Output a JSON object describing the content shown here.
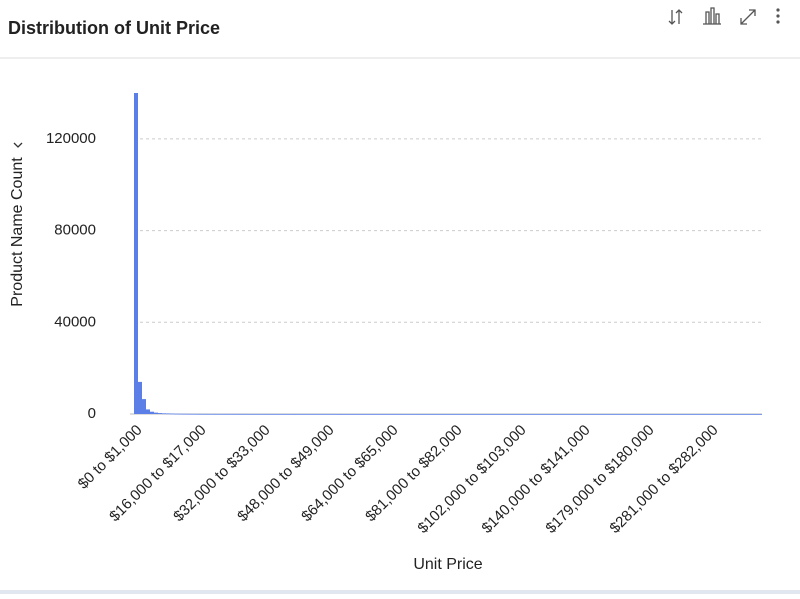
{
  "chart_data": {
    "type": "bar",
    "title": "Distribution of Unit Price",
    "x_label": "Unit Price",
    "y_label": "Product Name Count",
    "color": "#5b7fe6",
    "grid": true,
    "ylim": [
      0,
      140000
    ],
    "yticks": [
      0,
      40000,
      80000,
      120000
    ],
    "categories": [
      "$0 to $1,000",
      null,
      null,
      null,
      null,
      null,
      null,
      null,
      null,
      null,
      null,
      null,
      null,
      null,
      null,
      null,
      "$16,000 to $17,000",
      null,
      null,
      null,
      null,
      null,
      null,
      null,
      null,
      null,
      null,
      null,
      null,
      null,
      null,
      null,
      "$32,000 to $33,000",
      null,
      null,
      null,
      null,
      null,
      null,
      null,
      null,
      null,
      null,
      null,
      null,
      null,
      null,
      null,
      "$48,000 to $49,000",
      null,
      null,
      null,
      null,
      null,
      null,
      null,
      null,
      null,
      null,
      null,
      null,
      null,
      null,
      null,
      "$64,000 to $65,000",
      null,
      null,
      null,
      null,
      null,
      null,
      null,
      null,
      null,
      null,
      null,
      null,
      null,
      null,
      null,
      "$81,000 to $82,000",
      null,
      null,
      null,
      null,
      null,
      null,
      null,
      null,
      null,
      null,
      null,
      null,
      null,
      null,
      null,
      "$102,000 to $103,000",
      null,
      null,
      null,
      null,
      null,
      null,
      null,
      null,
      null,
      null,
      null,
      null,
      null,
      null,
      null,
      "$140,000 to $141,000",
      null,
      null,
      null,
      null,
      null,
      null,
      null,
      null,
      null,
      null,
      null,
      null,
      null,
      null,
      null,
      "$179,000 to $180,000",
      null,
      null,
      null,
      null,
      null,
      null,
      null,
      null,
      null,
      null,
      null,
      null,
      null,
      null,
      null,
      "$281,000 to $282,000",
      null,
      null,
      null,
      null,
      null,
      null,
      null,
      null,
      null,
      null,
      null,
      null
    ],
    "values": [
      140000,
      14000,
      6500,
      2000,
      1000,
      600,
      400,
      300,
      250,
      200,
      150,
      120,
      100,
      90,
      80,
      70,
      60,
      55,
      50,
      50,
      45,
      45,
      40,
      40,
      40,
      35,
      35,
      35,
      30,
      30,
      30,
      30,
      30,
      30,
      25,
      25,
      25,
      25,
      25,
      20,
      20,
      20,
      20,
      20,
      20,
      20,
      20,
      20,
      20,
      20,
      20,
      15,
      15,
      15,
      15,
      15,
      15,
      15,
      15,
      15,
      15,
      15,
      15,
      15,
      15,
      15,
      15,
      10,
      10,
      10,
      10,
      10,
      10,
      10,
      10,
      10,
      10,
      10,
      10,
      10,
      10,
      10,
      10,
      10,
      10,
      10,
      10,
      10,
      10,
      10,
      10,
      10,
      10,
      10,
      10,
      10,
      10,
      10,
      10,
      10,
      10,
      10,
      10,
      10,
      10,
      10,
      10,
      10,
      10,
      10,
      10,
      10,
      10,
      10,
      10,
      10,
      10,
      10,
      10,
      10,
      10,
      10,
      10,
      10,
      10,
      10,
      10,
      10,
      10,
      10,
      10,
      10,
      10,
      10,
      10,
      10,
      10,
      10,
      10,
      10,
      10,
      10,
      10,
      10,
      10,
      10,
      10,
      10,
      10,
      10,
      10,
      10,
      10,
      10,
      10,
      10,
      10
    ]
  }
}
